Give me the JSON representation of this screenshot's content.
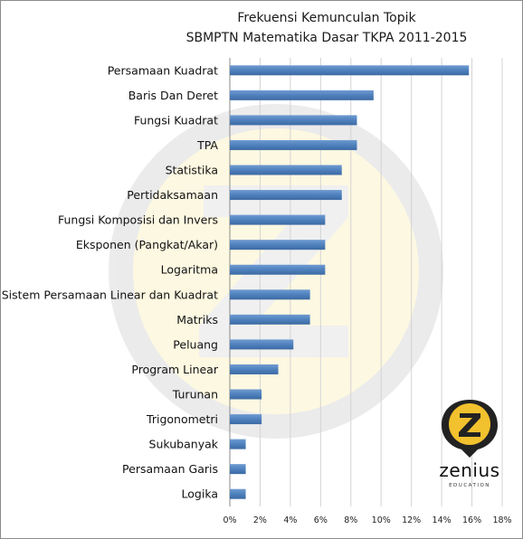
{
  "chart_data": {
    "type": "bar",
    "orientation": "horizontal",
    "title": "Frekuensi Kemunculan Topik",
    "subtitle": "SBMPTN Matematika Dasar TKPA 2011-2015",
    "categories": [
      "Persamaan Kuadrat",
      "Baris Dan Deret",
      "Fungsi Kuadrat",
      "TPA",
      "Statistika",
      "Pertidaksamaan",
      "Fungsi Komposisi dan Invers",
      "Eksponen (Pangkat/Akar)",
      "Logaritma",
      "Sistem Persamaan Linear dan Kuadrat",
      "Matriks",
      "Peluang",
      "Program Linear",
      "Turunan",
      "Trigonometri",
      "Sukubanyak",
      "Persamaan Garis",
      "Logika"
    ],
    "values": [
      15.8,
      9.5,
      8.4,
      8.4,
      7.4,
      7.4,
      6.3,
      6.3,
      6.3,
      5.3,
      5.3,
      4.2,
      3.2,
      2.1,
      2.1,
      1.05,
      1.05,
      1.05
    ],
    "xlim": [
      0,
      18
    ],
    "x_ticks": [
      "0%",
      "2%",
      "4%",
      "6%",
      "8%",
      "10%",
      "12%",
      "14%",
      "16%",
      "18%"
    ],
    "grid": "vertical",
    "bar_color": "#4f81bd"
  },
  "watermark": {
    "word": "zenius",
    "subword": "EDUCATION",
    "colors": {
      "yellow": "#f4d03f",
      "dark": "#2b2b2b"
    }
  }
}
